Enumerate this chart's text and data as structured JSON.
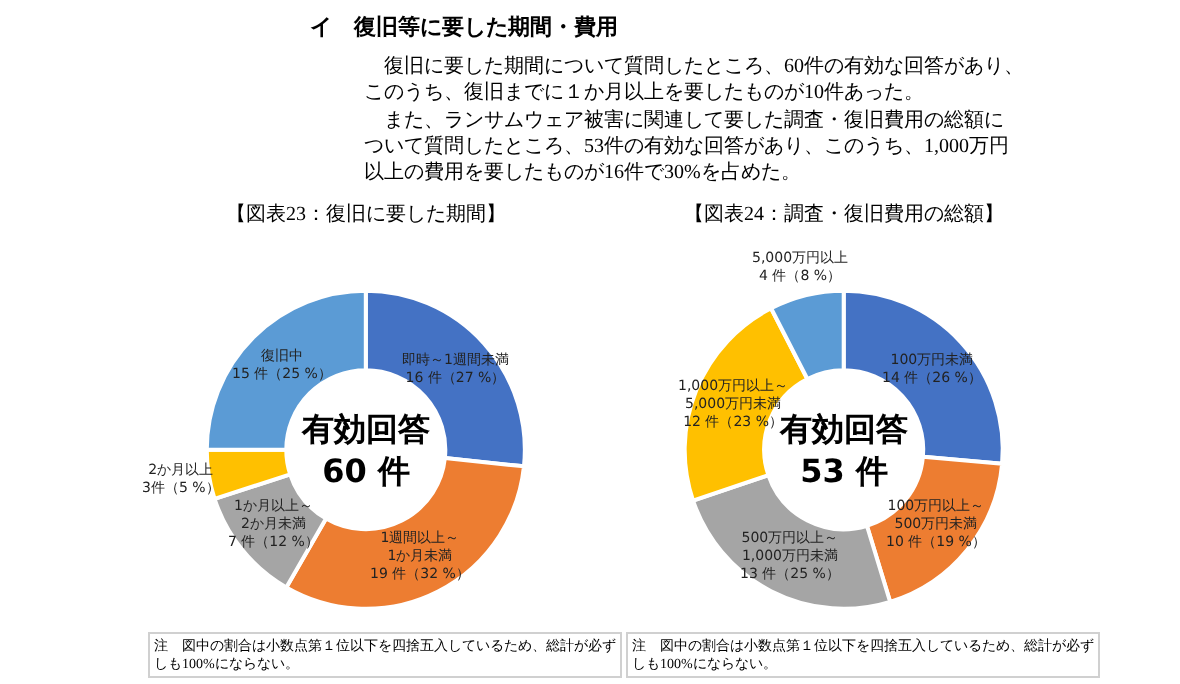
{
  "chart_data": [
    {
      "type": "other",
      "title": "イ　復旧等に要した期間・費用",
      "annotations": [
        "　復旧に要した期間について質問したところ、60件の有効な回答があり、このうち、復旧までに１か月以上を要したものが10件あった。",
        "　また、ランサムウェア被害に関連して要した調査・復旧費用の総額について質問したところ、53件の有効な回答があり、このうち、1,000万円以上の費用を要したものが16件で30%を占めた。"
      ]
    },
    {
      "type": "donut",
      "title": "【図表23：復旧に要した期間】",
      "categories": [
        "即時～1週間未満",
        "1週間以上～\n1か月未満",
        "1か月以上～\n2か月未満",
        "2か月以上",
        "復旧中"
      ],
      "values": [
        16,
        19,
        7,
        3,
        15
      ],
      "value_labels": [
        "16 件（27 %）",
        "19 件（32 %）",
        "7 件（12 %）",
        "3件（5 %）",
        "15 件（25 %）"
      ],
      "colors": [
        "#4472c4",
        "#ed7d31",
        "#a5a5a5",
        "#ffc000",
        "#5b9bd5"
      ],
      "annotations": [
        "有効回答\n60 件",
        "注　図中の割合は小数点第１位以下を四捨五入しているため、総計が必ずしも100%にならない。"
      ]
    },
    {
      "type": "donut",
      "title": "【図表24：調査・復旧費用の総額】",
      "categories": [
        "100万円未満",
        "100万円以上～\n500万円未満",
        "500万円以上～\n1,000万円未満",
        "1,000万円以上～\n5,000万円未満",
        "5,000万円以上"
      ],
      "values": [
        14,
        10,
        13,
        12,
        4
      ],
      "value_labels": [
        "14 件（26 %）",
        "10 件（19 %）",
        "13 件（25 %）",
        "12 件（23 %）",
        "4 件（8 %）"
      ],
      "colors": [
        "#4472c4",
        "#ed7d31",
        "#a5a5a5",
        "#ffc000",
        "#5b9bd5"
      ],
      "annotations": [
        "有効回答\n53 件",
        "注　図中の割合は小数点第１位以下を四捨五入しているため、総計が必ずしも100%にならない。"
      ]
    }
  ]
}
